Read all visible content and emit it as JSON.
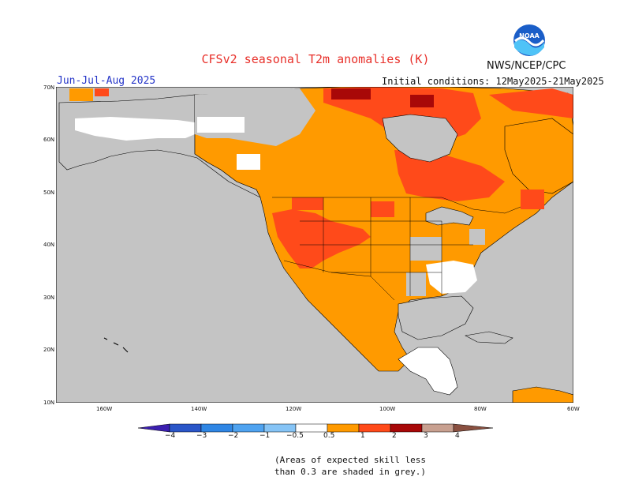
{
  "title": "CFSv2 seasonal T2m anomalies (K)",
  "agency": "NWS/NCEP/CPC",
  "logo": {
    "text": "NOAA",
    "color": "#1a5ec8"
  },
  "season": "Jun-Jul-Aug 2025",
  "initial_conditions": "Initial conditions: 12May2025-21May2025",
  "lat_labels": [
    "70N",
    "60N",
    "50N",
    "40N",
    "30N",
    "20N",
    "10N"
  ],
  "lon_labels": [
    "160W",
    "140W",
    "120W",
    "100W",
    "80W",
    "60W"
  ],
  "colorbar": {
    "labels": [
      "−4",
      "−3",
      "−2",
      "−1",
      "−0.5",
      "0.5",
      "1",
      "2",
      "3",
      "4"
    ],
    "colors": [
      "#3b1fb0",
      "#2a56c8",
      "#2f86e4",
      "#4fa3f0",
      "#86c4f6",
      "#ffffff",
      "#ff9a00",
      "#ff4a1a",
      "#e01b10",
      "#a00808",
      "#c8a090",
      "#8a5040"
    ]
  },
  "map_colors": {
    "grey": "#c4c4c4",
    "white": "#ffffff",
    "orange": "#ff9a00",
    "red_orange": "#ff4a1a",
    "red": "#e82010",
    "dark_red": "#a80808"
  },
  "note": {
    "line1": "(Areas of expected skill less",
    "line2": "than 0.3 are shaded in grey.)"
  }
}
